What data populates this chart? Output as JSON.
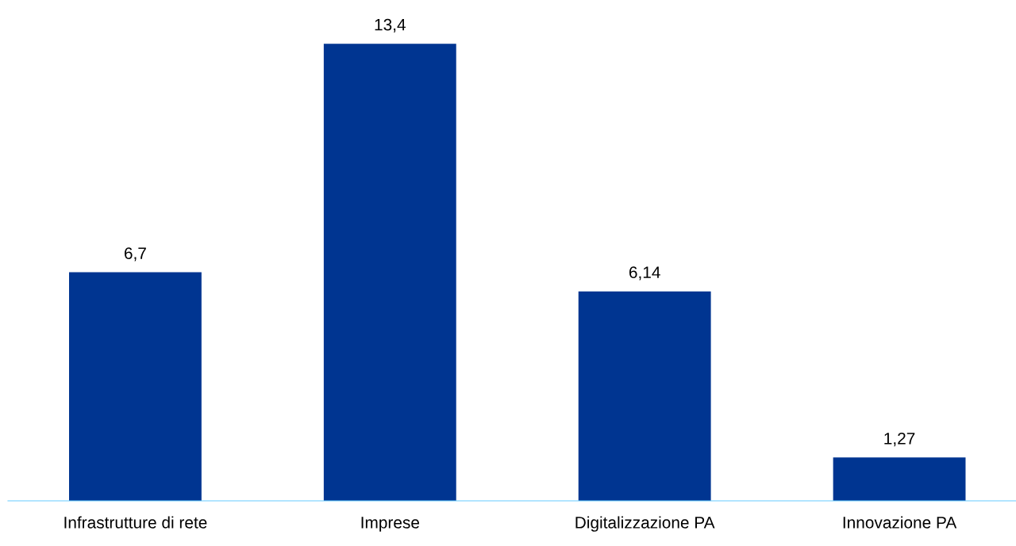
{
  "chart_data": {
    "type": "bar",
    "categories": [
      "Infrastrutture di rete",
      "Imprese",
      "Digitalizzazione PA",
      "Innovazione PA"
    ],
    "values": [
      6.7,
      13.4,
      6.14,
      1.27
    ],
    "value_labels": [
      "6,7",
      "13,4",
      "6,14",
      "1,27"
    ],
    "color": "#003591",
    "grid": false,
    "legend": false
  }
}
